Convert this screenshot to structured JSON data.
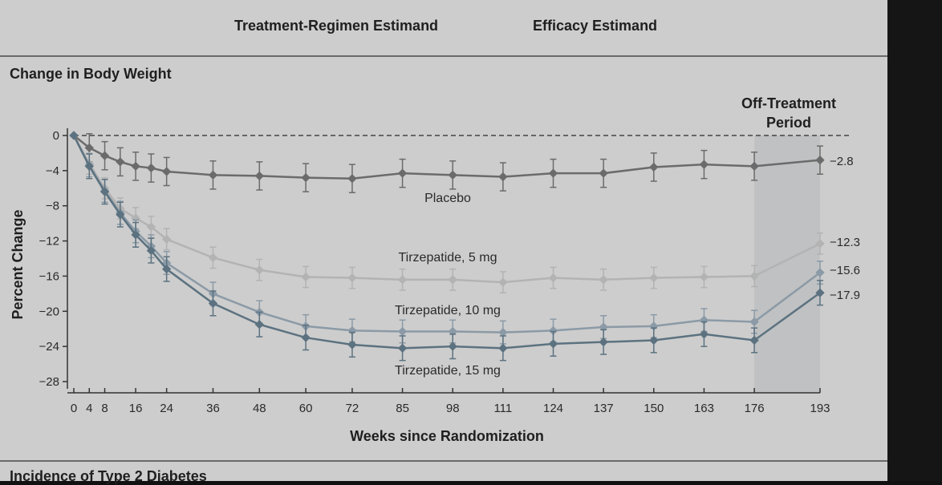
{
  "header": {
    "left_label": "Treatment-Regimen Estimand",
    "right_label": "Efficacy Estimand"
  },
  "section_title": "Change in Body Weight",
  "next_section_title": "Incidence of Type 2 Diabetes",
  "chart_data": {
    "type": "line",
    "xlabel": "Weeks since Randomization",
    "ylabel": "Percent Change",
    "ylim": [
      -28,
      0
    ],
    "yticks": [
      0,
      -4,
      -8,
      -12,
      -16,
      -20,
      -24,
      -28
    ],
    "xticks": [
      0,
      4,
      8,
      16,
      24,
      36,
      48,
      60,
      72,
      85,
      98,
      111,
      124,
      137,
      150,
      163,
      176,
      193
    ],
    "x": [
      0,
      4,
      8,
      12,
      16,
      20,
      24,
      36,
      48,
      60,
      72,
      85,
      98,
      111,
      124,
      137,
      150,
      163,
      176,
      193
    ],
    "shaded_region": {
      "label_line1": "Off-Treatment",
      "label_line2": "Period",
      "from": 176,
      "to": 193
    },
    "series": [
      {
        "name": "Placebo",
        "color": "#6b6b6b",
        "values": [
          0,
          -1.4,
          -2.3,
          -3.0,
          -3.5,
          -3.7,
          -4.1,
          -4.5,
          -4.6,
          -4.8,
          -4.9,
          -4.3,
          -4.5,
          -4.7,
          -4.3,
          -4.3,
          -3.6,
          -3.3,
          -3.5,
          -2.8
        ],
        "error": 1.6,
        "end_label": "−2.8"
      },
      {
        "name": "Tirzepatide, 5 mg",
        "color": "#b3b3b3",
        "values": [
          0,
          -3.2,
          -6.0,
          -8.3,
          -9.4,
          -10.4,
          -11.8,
          -13.9,
          -15.3,
          -16.1,
          -16.2,
          -16.4,
          -16.4,
          -16.7,
          -16.2,
          -16.4,
          -16.2,
          -16.1,
          -16.0,
          -12.3
        ],
        "error": 1.2,
        "end_label": "−12.3"
      },
      {
        "name": "Tirzepatide, 10 mg",
        "color": "#8b9aa6",
        "values": [
          0,
          -3.4,
          -6.3,
          -8.8,
          -10.9,
          -12.6,
          -14.5,
          -18.0,
          -20.1,
          -21.7,
          -22.2,
          -22.3,
          -22.3,
          -22.4,
          -22.2,
          -21.8,
          -21.7,
          -21.0,
          -21.2,
          -15.6
        ],
        "error": 1.3,
        "end_label": "−15.6"
      },
      {
        "name": "Tirzepatide, 15 mg",
        "color": "#5c7280",
        "values": [
          0,
          -3.5,
          -6.4,
          -9.0,
          -11.3,
          -13.1,
          -15.2,
          -19.1,
          -21.5,
          -23.0,
          -23.8,
          -24.2,
          -24.0,
          -24.2,
          -23.7,
          -23.5,
          -23.3,
          -22.6,
          -23.3,
          -17.9
        ],
        "error": 1.4,
        "end_label": "−17.9"
      }
    ]
  }
}
